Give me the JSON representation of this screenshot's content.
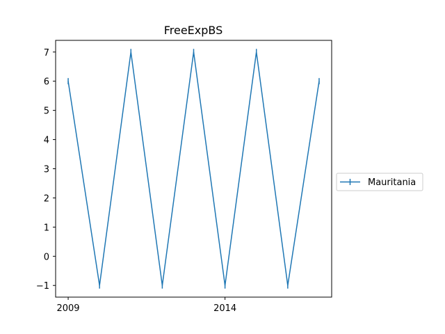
{
  "chart_data": {
    "type": "line",
    "title": "FreeExpBS",
    "xlabel": "",
    "ylabel": "",
    "x": [
      2009,
      2010,
      2011,
      2012,
      2013,
      2014,
      2015,
      2016,
      2017
    ],
    "x_ticks": [
      "2009",
      "2014"
    ],
    "y_ticks": [
      "−1",
      "0",
      "1",
      "2",
      "3",
      "4",
      "5",
      "6",
      "7"
    ],
    "ylim": [
      -1.4,
      7.4
    ],
    "xlim": [
      2008.6,
      2017.4
    ],
    "grid": false,
    "legend_position": "center-right outside",
    "series": [
      {
        "name": "Mauritania",
        "color": "#1f77b4",
        "marker": "|",
        "values": [
          6,
          -1,
          7,
          -1,
          7,
          -1,
          7,
          -1,
          6
        ]
      }
    ]
  }
}
